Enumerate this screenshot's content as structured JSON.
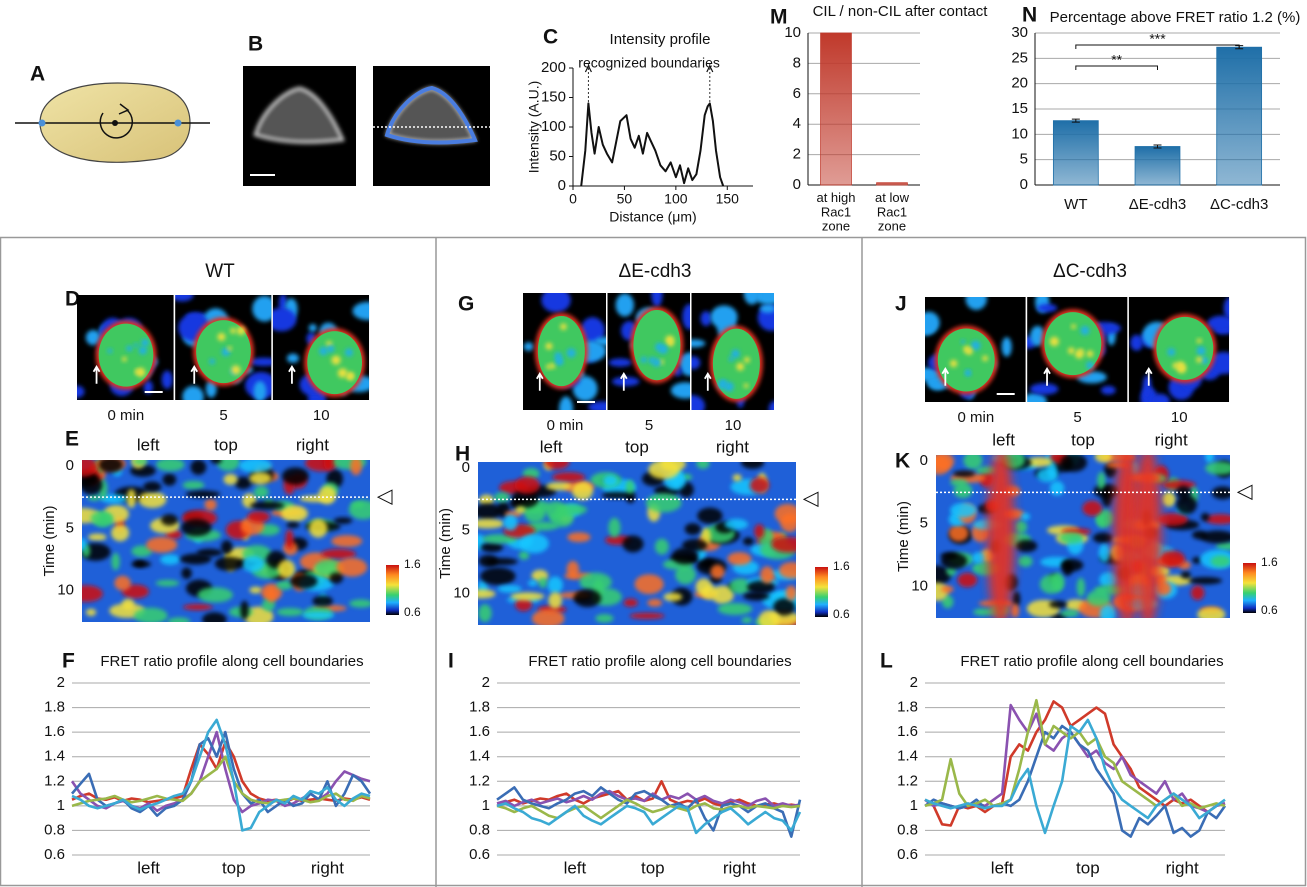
{
  "top_panels": [
    "A",
    "B"
  ],
  "columns": [
    {
      "title": "WT",
      "image_panel": "D",
      "kymo_panel": "E",
      "times": [
        "0 min",
        "5",
        "10"
      ],
      "positions": [
        "left",
        "top",
        "right"
      ],
      "time_label": "Time (min)",
      "time_ticks": [
        0,
        5,
        10
      ],
      "colorbar": [
        1.6,
        0.6
      ]
    },
    {
      "title": "ΔE-cdh3",
      "image_panel": "G",
      "kymo_panel": "H",
      "times": [
        "0 min",
        "5",
        "10"
      ],
      "positions": [
        "left",
        "top",
        "right"
      ],
      "time_label": "Time (min)",
      "time_ticks": [
        0,
        5,
        10
      ],
      "colorbar": [
        1.6,
        0.6
      ]
    },
    {
      "title": "ΔC-cdh3",
      "image_panel": "J",
      "kymo_panel": "K",
      "times": [
        "0 min",
        "5",
        "10"
      ],
      "positions": [
        "left",
        "top",
        "right"
      ],
      "time_label": "Time (min)",
      "time_ticks": [
        0,
        5,
        10
      ],
      "colorbar": [
        1.6,
        0.6
      ]
    }
  ],
  "chart_data": [
    {
      "type": "line",
      "panel": "C",
      "title": "Intensity profile",
      "annotation": "recognized boundaries",
      "xlabel": "Distance (μm)",
      "ylabel": "Intensity (A.U.)",
      "x": [
        8,
        12,
        15,
        18,
        21,
        25,
        29,
        33,
        38,
        42,
        46,
        52,
        56,
        60,
        64,
        68,
        72,
        76,
        80,
        85,
        90,
        95,
        100,
        104,
        108,
        112,
        116,
        120,
        124,
        128,
        131,
        133,
        136,
        139,
        143,
        146
      ],
      "values": [
        0,
        60,
        140,
        90,
        55,
        100,
        70,
        55,
        40,
        75,
        110,
        120,
        80,
        65,
        85,
        55,
        90,
        75,
        60,
        35,
        25,
        40,
        15,
        35,
        5,
        30,
        10,
        20,
        60,
        120,
        135,
        140,
        110,
        60,
        15,
        0
      ],
      "color": "#111111",
      "xlim": [
        0,
        175
      ],
      "xticks": [
        0,
        50,
        100,
        150
      ],
      "ylim": [
        0,
        200
      ],
      "yticks": [
        0,
        50,
        100,
        150,
        200
      ],
      "grid": false
    },
    {
      "type": "bar",
      "panel": "M",
      "title": "CIL / non-CIL after contact",
      "categories": [
        "at high\nRac1\nzone",
        "at low\nRac1\nzone"
      ],
      "values": [
        10,
        0.15
      ],
      "color": "#c0392b",
      "ylim": [
        0,
        10
      ],
      "yticks": [
        0,
        2,
        4,
        6,
        8,
        10
      ],
      "grid": true
    },
    {
      "type": "bar",
      "panel": "N",
      "title": "Percentage above FRET ratio 1.2 (%)",
      "categories": [
        "WT",
        "ΔE-cdh3",
        "ΔC-cdh3"
      ],
      "values": [
        12.7,
        7.6,
        27.2
      ],
      "errors": [
        0.3,
        0.3,
        0.3
      ],
      "color": "#1f6fa8",
      "ylim": [
        0,
        30
      ],
      "yticks": [
        0,
        5,
        10,
        15,
        20,
        25,
        30
      ],
      "grid": true,
      "brackets": [
        {
          "label": "**",
          "between": [
            "WT",
            "ΔE-cdh3"
          ]
        },
        {
          "label": "***",
          "between": [
            "WT",
            "ΔC-cdh3"
          ]
        }
      ]
    },
    {
      "type": "line",
      "panel": "F",
      "title": "FRET ratio profile along cell boundaries",
      "categories": [
        null,
        null,
        null,
        null,
        null,
        null,
        null,
        null,
        null,
        "left",
        null,
        null,
        null,
        null,
        null,
        null,
        null,
        null,
        null,
        "top",
        null,
        null,
        null,
        null,
        null,
        null,
        null,
        null,
        null,
        null,
        "right",
        null,
        null,
        null,
        null,
        null
      ],
      "series": [
        {
          "color": "#d03a2a",
          "values": [
            1.05,
            1.08,
            1.1,
            1.06,
            1.05,
            1.07,
            1.04,
            1.06,
            1.05,
            1.03,
            1.04,
            1.05,
            1.06,
            1.08,
            1.3,
            1.5,
            1.42,
            1.3,
            1.52,
            1.4,
            1.2,
            1.1,
            1.06,
            1.04,
            1.05,
            1.03,
            1.06,
            1.04,
            1.05,
            1.06,
            1.05,
            1.04,
            1.06,
            1.05,
            1.07,
            1.05
          ]
        },
        {
          "color": "#8a52b0",
          "values": [
            1.2,
            1.1,
            1.05,
            1.0,
            0.98,
            1.02,
            1.04,
            1.0,
            0.98,
            1.02,
            0.96,
            1.0,
            1.02,
            1.05,
            1.1,
            1.2,
            1.4,
            1.6,
            1.3,
            1.05,
            0.95,
            1.0,
            1.02,
            1.05,
            1.04,
            1.0,
            1.02,
            1.06,
            1.1,
            1.05,
            1.1,
            1.2,
            1.28,
            1.25,
            1.22,
            1.2
          ]
        },
        {
          "color": "#3a6db5",
          "values": [
            1.1,
            1.18,
            1.26,
            1.05,
            1.0,
            1.02,
            1.05,
            0.98,
            0.95,
            1.0,
            0.92,
            0.98,
            1.0,
            1.05,
            1.2,
            1.5,
            1.55,
            1.4,
            1.6,
            1.3,
            1.1,
            1.02,
            1.05,
            0.95,
            1.0,
            1.05,
            1.0,
            1.02,
            1.1,
            1.05,
            1.2,
            1.0,
            1.1,
            1.25,
            1.2,
            1.1
          ]
        },
        {
          "color": "#9ab84a",
          "values": [
            1.0,
            1.02,
            1.04,
            1.05,
            1.06,
            1.08,
            1.05,
            1.03,
            1.04,
            1.06,
            1.08,
            1.06,
            1.05,
            1.04,
            1.1,
            1.2,
            1.25,
            1.3,
            1.4,
            1.2,
            1.1,
            1.05,
            1.03,
            1.02,
            1.04,
            1.05,
            1.06,
            1.05,
            1.03,
            1.04,
            1.08,
            1.1,
            1.05,
            1.04,
            1.08,
            1.06
          ]
        },
        {
          "color": "#3aaad4",
          "values": [
            1.08,
            1.05,
            1.0,
            0.98,
            1.0,
            1.02,
            1.05,
            1.0,
            0.97,
            1.0,
            1.02,
            1.05,
            1.08,
            1.1,
            1.2,
            1.4,
            1.6,
            1.7,
            1.5,
            1.2,
            0.8,
            0.82,
            0.95,
            1.0,
            1.05,
            1.02,
            1.08,
            1.05,
            1.12,
            1.1,
            1.15,
            1.05,
            1.0,
            1.06,
            1.1,
            1.08
          ]
        }
      ],
      "ylim": [
        0.6,
        2
      ],
      "yticks": [
        0.6,
        0.8,
        1,
        1.2,
        1.4,
        1.6,
        1.8,
        2
      ],
      "grid": true
    },
    {
      "type": "line",
      "panel": "I",
      "title": "FRET ratio profile along cell boundaries",
      "categories": [
        null,
        null,
        null,
        null,
        null,
        null,
        null,
        null,
        null,
        "left",
        null,
        null,
        null,
        null,
        null,
        null,
        null,
        null,
        "top",
        null,
        null,
        null,
        null,
        null,
        null,
        null,
        null,
        null,
        "right",
        null,
        null,
        null,
        null,
        null,
        null,
        null
      ],
      "series": [
        {
          "color": "#d03a2a",
          "values": [
            1.0,
            1.03,
            1.05,
            1.02,
            1.04,
            1.06,
            1.05,
            1.08,
            1.1,
            1.05,
            1.02,
            1.06,
            1.08,
            1.1,
            1.12,
            1.05,
            1.08,
            1.04,
            1.06,
            1.2,
            1.05,
            1.02,
            1.04,
            1.03,
            1.06,
            1.02,
            1.0,
            1.03,
            1.05,
            1.02,
            1.0,
            1.01,
            1.02,
            1.0,
            1.01,
            1.0
          ]
        },
        {
          "color": "#8a52b0",
          "values": [
            1.02,
            1.04,
            1.0,
            1.03,
            1.05,
            1.02,
            1.04,
            1.06,
            1.03,
            1.05,
            1.08,
            1.05,
            1.1,
            1.12,
            1.08,
            1.05,
            1.06,
            1.04,
            1.1,
            1.05,
            1.08,
            1.06,
            1.1,
            1.05,
            1.08,
            1.04,
            1.02,
            1.05,
            1.03,
            1.0,
            1.04,
            1.06,
            1.0,
            1.02,
            1.0,
            1.01
          ]
        },
        {
          "color": "#3a6db5",
          "values": [
            1.05,
            1.1,
            1.15,
            1.05,
            1.02,
            1.0,
            0.98,
            1.02,
            1.05,
            1.1,
            1.12,
            1.08,
            1.15,
            1.1,
            1.05,
            1.02,
            1.1,
            1.12,
            1.08,
            1.05,
            1.0,
            1.02,
            0.98,
            1.05,
            0.9,
            0.8,
            1.0,
            1.02,
            1.0,
            0.95,
            1.0,
            1.02,
            0.98,
            0.95,
            0.75,
            1.05
          ]
        },
        {
          "color": "#9ab84a",
          "values": [
            1.0,
            0.98,
            0.95,
            0.98,
            1.0,
            0.96,
            0.92,
            0.9,
            0.95,
            0.98,
            1.0,
            0.95,
            0.9,
            0.95,
            1.0,
            1.05,
            1.02,
            0.98,
            0.95,
            0.97,
            1.0,
            0.98,
            0.96,
            1.0,
            1.02,
            0.98,
            0.97,
            0.99,
            1.0,
            0.98,
            1.0,
            0.99,
            0.98,
            1.0,
            0.99,
            1.0
          ]
        },
        {
          "color": "#3aaad4",
          "values": [
            1.0,
            1.02,
            0.98,
            0.95,
            0.9,
            0.88,
            0.85,
            0.9,
            0.95,
            1.0,
            0.92,
            0.88,
            0.85,
            0.9,
            0.95,
            1.0,
            0.98,
            0.95,
            0.85,
            0.9,
            0.95,
            1.0,
            0.98,
            0.78,
            0.85,
            0.9,
            0.95,
            0.98,
            0.92,
            0.85,
            0.9,
            0.95,
            0.9,
            0.88,
            0.8,
            0.95
          ]
        }
      ],
      "ylim": [
        0.6,
        2
      ],
      "yticks": [
        0.6,
        0.8,
        1,
        1.2,
        1.4,
        1.6,
        1.8,
        2
      ],
      "grid": true
    },
    {
      "type": "line",
      "panel": "L",
      "title": "FRET ratio profile along cell boundaries",
      "categories": [
        null,
        null,
        null,
        null,
        null,
        null,
        null,
        null,
        null,
        "left",
        null,
        null,
        null,
        null,
        null,
        null,
        null,
        null,
        null,
        "top",
        null,
        null,
        null,
        null,
        null,
        null,
        null,
        null,
        null,
        null,
        "right",
        null,
        null,
        null,
        null,
        null
      ],
      "series": [
        {
          "color": "#d03a2a",
          "values": [
            1.05,
            1.0,
            0.85,
            0.84,
            1.0,
            0.98,
            1.0,
            0.95,
            1.0,
            1.02,
            1.4,
            1.5,
            1.45,
            1.6,
            1.7,
            1.85,
            1.8,
            1.65,
            1.7,
            1.75,
            1.8,
            1.75,
            1.5,
            1.4,
            1.3,
            1.15,
            1.1,
            1.05,
            1.0,
            1.05,
            1.02,
            1.05,
            1.0,
            0.95,
            1.0,
            1.02
          ]
        },
        {
          "color": "#8a52b0",
          "values": [
            1.05,
            1.0,
            1.02,
            1.0,
            0.98,
            1.0,
            1.02,
            1.0,
            1.05,
            1.1,
            1.82,
            1.7,
            1.6,
            1.75,
            1.5,
            1.45,
            1.55,
            1.6,
            1.5,
            1.4,
            1.45,
            1.35,
            1.3,
            1.4,
            1.25,
            1.2,
            1.15,
            1.1,
            1.2,
            1.05,
            1.1,
            1.0,
            0.98,
            0.95,
            1.0,
            1.02
          ]
        },
        {
          "color": "#3a6db5",
          "values": [
            1.0,
            1.05,
            1.02,
            1.0,
            0.98,
            1.0,
            1.05,
            0.98,
            1.0,
            1.02,
            1.0,
            1.05,
            1.2,
            1.4,
            1.6,
            1.55,
            1.65,
            1.6,
            1.5,
            1.45,
            1.3,
            1.2,
            1.1,
            0.8,
            0.75,
            0.9,
            0.85,
            0.92,
            1.0,
            0.78,
            0.82,
            0.75,
            0.8,
            0.95,
            0.9,
            1.0
          ]
        },
        {
          "color": "#9ab84a",
          "values": [
            1.0,
            1.02,
            1.05,
            1.38,
            1.1,
            1.0,
            1.02,
            1.05,
            1.0,
            1.02,
            1.05,
            1.3,
            1.6,
            1.86,
            1.5,
            1.65,
            1.6,
            1.55,
            1.6,
            1.5,
            1.55,
            1.4,
            1.35,
            1.2,
            1.15,
            1.1,
            1.05,
            1.0,
            1.05,
            1.1,
            1.0,
            1.02,
            0.98,
            1.0,
            1.02,
            1.0
          ]
        },
        {
          "color": "#3aaad4",
          "values": [
            1.05,
            1.02,
            1.0,
            0.98,
            1.0,
            1.02,
            1.0,
            0.98,
            1.0,
            1.0,
            1.05,
            1.2,
            1.3,
            1.0,
            0.78,
            1.0,
            1.2,
            1.65,
            1.6,
            1.7,
            1.55,
            1.3,
            1.15,
            1.05,
            1.0,
            0.95,
            0.9,
            1.0,
            1.05,
            1.1,
            1.05,
            1.0,
            0.9,
            0.95,
            1.0,
            1.05
          ]
        }
      ],
      "ylim": [
        0.6,
        2
      ],
      "yticks": [
        0.6,
        0.8,
        1,
        1.2,
        1.4,
        1.6,
        1.8,
        2
      ],
      "grid": true
    }
  ]
}
